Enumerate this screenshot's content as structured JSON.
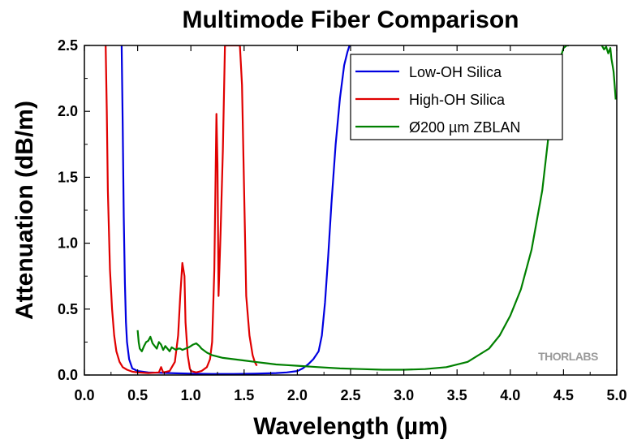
{
  "chart_data": {
    "type": "line",
    "title": "Multimode Fiber Comparison",
    "xlabel": "Wavelength (µm)",
    "ylabel": "Attenuation (dB/m)",
    "xlim": [
      0.0,
      5.0
    ],
    "ylim": [
      0.0,
      2.5
    ],
    "xticks": [
      "0.0",
      "0.5",
      "1.0",
      "1.5",
      "2.0",
      "2.5",
      "3.0",
      "3.5",
      "4.0",
      "4.5",
      "5.0"
    ],
    "yticks": [
      "0.0",
      "0.5",
      "1.0",
      "1.5",
      "2.0",
      "2.5"
    ],
    "grid": false,
    "legend_position": "top-right",
    "watermark": "THORLABS",
    "series": [
      {
        "name": "Low-OH Silica",
        "color": "#0000e0",
        "x": [
          0.35,
          0.36,
          0.37,
          0.38,
          0.39,
          0.4,
          0.42,
          0.45,
          0.5,
          0.6,
          0.8,
          1.0,
          1.2,
          1.4,
          1.6,
          1.8,
          1.9,
          2.0,
          2.05,
          2.1,
          2.15,
          2.2,
          2.23,
          2.26,
          2.29,
          2.32,
          2.36,
          2.4,
          2.44,
          2.47,
          2.49
        ],
        "y": [
          2.5,
          1.9,
          1.2,
          0.7,
          0.4,
          0.25,
          0.12,
          0.05,
          0.03,
          0.02,
          0.015,
          0.01,
          0.008,
          0.008,
          0.01,
          0.015,
          0.02,
          0.03,
          0.05,
          0.08,
          0.12,
          0.18,
          0.3,
          0.55,
          0.9,
          1.3,
          1.75,
          2.1,
          2.35,
          2.45,
          2.5
        ]
      },
      {
        "name": "High-OH Silica",
        "color": "#e00000",
        "x": [
          0.2,
          0.21,
          0.22,
          0.24,
          0.26,
          0.28,
          0.3,
          0.33,
          0.36,
          0.4,
          0.45,
          0.5,
          0.6,
          0.7,
          0.72,
          0.74,
          0.8,
          0.85,
          0.88,
          0.9,
          0.92,
          0.94,
          0.95,
          0.97,
          0.99,
          1.0,
          1.05,
          1.1,
          1.15,
          1.18,
          1.2,
          1.22,
          1.24,
          1.25,
          1.26,
          1.28,
          1.3,
          1.32,
          1.34,
          1.36,
          1.38,
          1.4,
          1.43,
          1.46,
          1.48,
          1.5,
          1.52,
          1.55,
          1.58,
          1.6,
          1.62
        ],
        "y": [
          2.5,
          2.0,
          1.4,
          0.8,
          0.5,
          0.3,
          0.18,
          0.1,
          0.06,
          0.04,
          0.025,
          0.02,
          0.015,
          0.02,
          0.06,
          0.02,
          0.03,
          0.1,
          0.3,
          0.6,
          0.85,
          0.75,
          0.4,
          0.15,
          0.05,
          0.03,
          0.02,
          0.03,
          0.06,
          0.12,
          0.25,
          0.8,
          1.98,
          1.6,
          0.6,
          1.1,
          1.7,
          2.5,
          2.5,
          2.5,
          2.5,
          2.5,
          2.5,
          2.5,
          2.2,
          1.4,
          0.6,
          0.3,
          0.15,
          0.1,
          0.07
        ]
      },
      {
        "name": "Ø200 µm ZBLAN",
        "color": "#008000",
        "x": [
          0.5,
          0.51,
          0.52,
          0.54,
          0.56,
          0.58,
          0.6,
          0.62,
          0.64,
          0.66,
          0.68,
          0.7,
          0.72,
          0.74,
          0.76,
          0.78,
          0.8,
          0.82,
          0.84,
          0.86,
          0.88,
          0.9,
          0.92,
          0.95,
          0.98,
          1.0,
          1.02,
          1.05,
          1.08,
          1.1,
          1.15,
          1.2,
          1.3,
          1.4,
          1.5,
          1.6,
          1.7,
          1.8,
          1.9,
          2.0,
          2.2,
          2.4,
          2.6,
          2.8,
          3.0,
          3.2,
          3.4,
          3.6,
          3.8,
          3.9,
          4.0,
          4.1,
          4.2,
          4.3,
          4.35,
          4.4,
          4.45,
          4.5,
          4.53,
          4.55
        ],
        "y": [
          0.34,
          0.25,
          0.2,
          0.18,
          0.22,
          0.25,
          0.26,
          0.29,
          0.24,
          0.22,
          0.2,
          0.25,
          0.23,
          0.19,
          0.22,
          0.2,
          0.18,
          0.21,
          0.2,
          0.19,
          0.2,
          0.2,
          0.19,
          0.2,
          0.21,
          0.22,
          0.23,
          0.24,
          0.22,
          0.2,
          0.17,
          0.15,
          0.13,
          0.12,
          0.11,
          0.1,
          0.09,
          0.08,
          0.075,
          0.07,
          0.06,
          0.05,
          0.045,
          0.04,
          0.04,
          0.045,
          0.06,
          0.1,
          0.2,
          0.3,
          0.45,
          0.65,
          0.95,
          1.4,
          1.75,
          2.1,
          2.35,
          2.48,
          2.5,
          2.5
        ]
      },
      {
        "name": "",
        "color": "#008000",
        "x": [
          4.86,
          4.88,
          4.9,
          4.92,
          4.94,
          4.95,
          4.96,
          4.97,
          4.98,
          4.99
        ],
        "y": [
          2.5,
          2.47,
          2.49,
          2.44,
          2.48,
          2.4,
          2.35,
          2.3,
          2.2,
          2.09
        ]
      }
    ]
  }
}
